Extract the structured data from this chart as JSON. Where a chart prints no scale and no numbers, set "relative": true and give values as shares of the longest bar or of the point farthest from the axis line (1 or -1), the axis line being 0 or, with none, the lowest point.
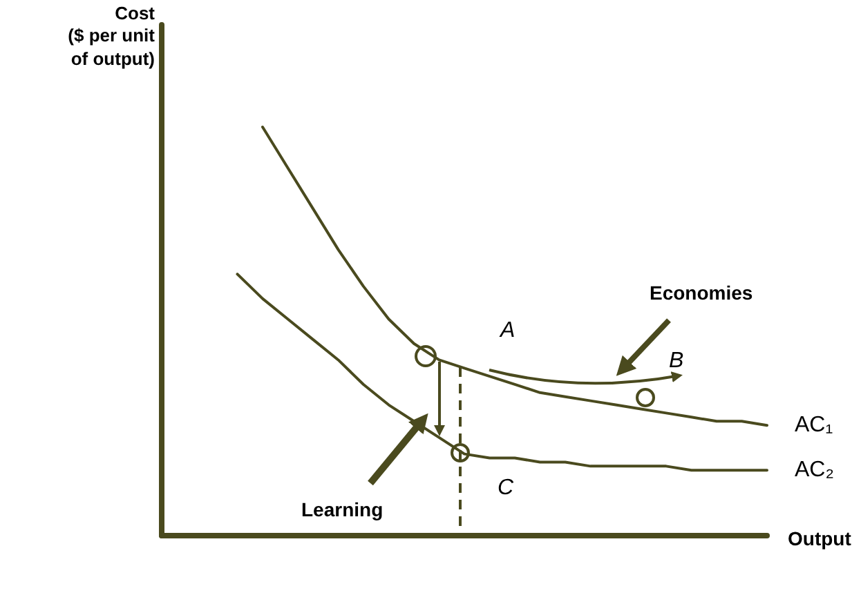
{
  "chart_data": {
    "type": "line",
    "relative": true,
    "xlabel": "Output",
    "ylabel": "Cost\n($ per unit\nof output)",
    "categories": [
      null,
      null,
      null,
      null,
      null,
      null,
      null,
      null,
      null,
      null,
      null,
      null,
      null,
      null,
      null,
      null,
      null,
      null,
      null,
      null,
      null,
      null,
      null,
      null,
      null
    ],
    "series": [
      {
        "name": "AC₁",
        "color": "#4a4a1e",
        "values": [
          null,
          null,
          null,
          null,
          1.0,
          0.9,
          0.8,
          0.7,
          0.61,
          0.53,
          0.47,
          0.43,
          0.41,
          0.39,
          0.37,
          0.35,
          0.34,
          0.33,
          0.32,
          0.31,
          0.3,
          0.29,
          0.28,
          0.28,
          0.27
        ]
      },
      {
        "name": "AC₂",
        "color": "#4a4a1e",
        "values": [
          null,
          null,
          null,
          0.64,
          0.58,
          0.53,
          0.48,
          0.43,
          0.37,
          0.32,
          0.28,
          0.24,
          0.2,
          0.19,
          0.19,
          0.18,
          0.18,
          0.17,
          0.17,
          0.17,
          0.17,
          0.16,
          0.16,
          0.16,
          0.16
        ]
      }
    ],
    "annotations": [
      "A",
      "B",
      "C",
      "Economies",
      "Learning"
    ],
    "legend": false,
    "grid": false,
    "marker": "none",
    "line_style": "solid"
  }
}
